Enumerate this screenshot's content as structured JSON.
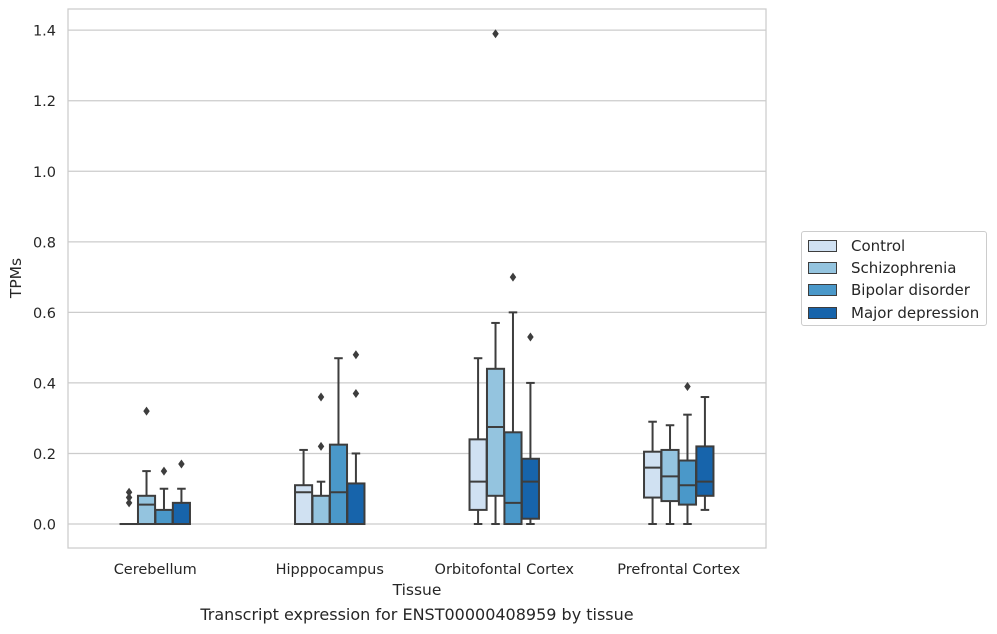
{
  "chart_data": {
    "type": "boxplot",
    "xlabel": "Tissue",
    "ylabel": "TPMs",
    "caption": "Transcript expression for ENST00000408959 by tissue",
    "ylim": [
      -0.068,
      1.46
    ],
    "yticks": [
      0.0,
      0.2,
      0.4,
      0.6,
      0.8,
      1.0,
      1.2,
      1.4
    ],
    "ytick_labels": [
      "0.0",
      "0.2",
      "0.4",
      "0.6",
      "0.8",
      "1.0",
      "1.2",
      "1.4"
    ],
    "grid": "horizontal",
    "legend_position": "right",
    "categories": [
      "Cerebellum",
      "Hipppocampus",
      "Orbitofontal Cortex",
      "Prefrontal Cortex"
    ],
    "series": [
      {
        "name": "Control",
        "color": "#d0e1f2",
        "boxes": [
          {
            "whislo": 0.0,
            "q1": 0.0,
            "med": 0.0,
            "q3": 0.0,
            "whishi": 0.0,
            "fliers": [
              0.06,
              0.075,
              0.09
            ]
          },
          {
            "whislo": 0.0,
            "q1": 0.0,
            "med": 0.09,
            "q3": 0.11,
            "whishi": 0.21,
            "fliers": []
          },
          {
            "whislo": 0.0,
            "q1": 0.04,
            "med": 0.12,
            "q3": 0.24,
            "whishi": 0.47,
            "fliers": []
          },
          {
            "whislo": 0.0,
            "q1": 0.075,
            "med": 0.16,
            "q3": 0.205,
            "whishi": 0.29,
            "fliers": []
          }
        ]
      },
      {
        "name": "Schizophrenia",
        "color": "#94c4df",
        "boxes": [
          {
            "whislo": 0.0,
            "q1": 0.0,
            "med": 0.055,
            "q3": 0.08,
            "whishi": 0.15,
            "fliers": [
              0.32
            ]
          },
          {
            "whislo": 0.0,
            "q1": 0.0,
            "med": 0.0,
            "q3": 0.08,
            "whishi": 0.12,
            "fliers": [
              0.22,
              0.36
            ]
          },
          {
            "whislo": 0.0,
            "q1": 0.08,
            "med": 0.275,
            "q3": 0.44,
            "whishi": 0.57,
            "fliers": [
              1.39
            ]
          },
          {
            "whislo": 0.0,
            "q1": 0.065,
            "med": 0.135,
            "q3": 0.21,
            "whishi": 0.28,
            "fliers": []
          }
        ]
      },
      {
        "name": "Bipolar disorder",
        "color": "#4a98c9",
        "boxes": [
          {
            "whislo": 0.0,
            "q1": 0.0,
            "med": 0.0,
            "q3": 0.04,
            "whishi": 0.1,
            "fliers": [
              0.15
            ]
          },
          {
            "whislo": 0.0,
            "q1": 0.0,
            "med": 0.09,
            "q3": 0.225,
            "whishi": 0.47,
            "fliers": []
          },
          {
            "whislo": 0.0,
            "q1": 0.0,
            "med": 0.06,
            "q3": 0.26,
            "whishi": 0.6,
            "fliers": [
              0.7
            ]
          },
          {
            "whislo": 0.0,
            "q1": 0.055,
            "med": 0.11,
            "q3": 0.18,
            "whishi": 0.31,
            "fliers": [
              0.39
            ]
          }
        ]
      },
      {
        "name": "Major depression",
        "color": "#1764ab",
        "boxes": [
          {
            "whislo": 0.0,
            "q1": 0.0,
            "med": 0.0,
            "q3": 0.06,
            "whishi": 0.1,
            "fliers": [
              0.17
            ]
          },
          {
            "whislo": 0.0,
            "q1": 0.0,
            "med": 0.0,
            "q3": 0.115,
            "whishi": 0.2,
            "fliers": [
              0.37,
              0.48
            ]
          },
          {
            "whislo": 0.0,
            "q1": 0.015,
            "med": 0.12,
            "q3": 0.185,
            "whishi": 0.4,
            "fliers": [
              0.53
            ]
          },
          {
            "whislo": 0.04,
            "q1": 0.08,
            "med": 0.12,
            "q3": 0.22,
            "whishi": 0.36,
            "fliers": []
          }
        ]
      }
    ]
  }
}
